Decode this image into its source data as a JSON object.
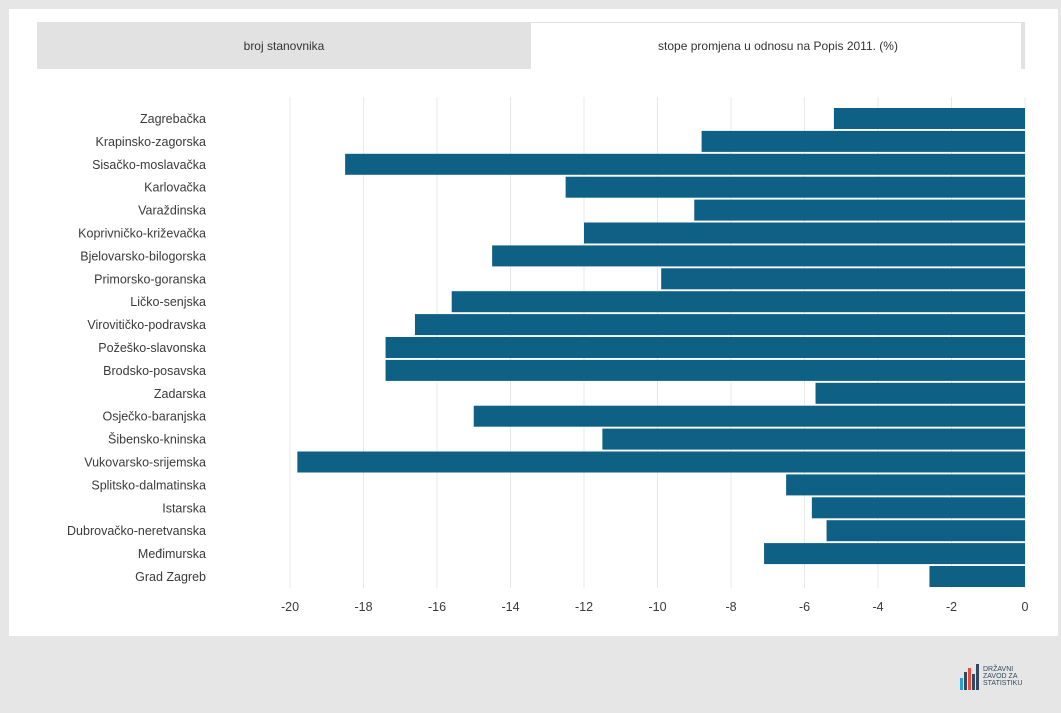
{
  "tabs": [
    {
      "label": "broj stanovnika",
      "active": false
    },
    {
      "label": "stope promjena u odnosu na Popis 2011. (%)",
      "active": true
    }
  ],
  "chart_data": {
    "type": "bar",
    "orientation": "horizontal",
    "categories": [
      "Zagrebačka",
      "Krapinsko-zagorska",
      "Sisačko-moslavačka",
      "Karlovačka",
      "Varaždinska",
      "Koprivničko-križevačka",
      "Bjelovarsko-bilogorska",
      "Primorsko-goranska",
      "Ličko-senjska",
      "Virovitičko-podravska",
      "Požeško-slavonska",
      "Brodsko-posavska",
      "Zadarska",
      "Osječko-baranjska",
      "Šibensko-kninska",
      "Vukovarsko-srijemska",
      "Splitsko-dalmatinska",
      "Istarska",
      "Dubrovačko-neretvanska",
      "Međimurska",
      "Grad Zagreb"
    ],
    "values": [
      -5.2,
      -8.8,
      -18.5,
      -12.5,
      -9.0,
      -12.0,
      -14.5,
      -9.9,
      -15.6,
      -16.6,
      -17.4,
      -17.4,
      -5.7,
      -15.0,
      -11.5,
      -19.8,
      -6.5,
      -5.8,
      -5.4,
      -7.1,
      -2.6
    ],
    "xlim": [
      -20,
      0
    ],
    "xticks": [
      -20,
      -18,
      -16,
      -14,
      -12,
      -10,
      -8,
      -6,
      -4,
      -2,
      0
    ],
    "grid": true,
    "bar_color": "#0e6185",
    "title": "",
    "xlabel": "",
    "ylabel": ""
  },
  "logo": {
    "line1": "DRŽAVNI",
    "line2": "ZAVOD ZA",
    "line3": "STATISTIKU"
  }
}
